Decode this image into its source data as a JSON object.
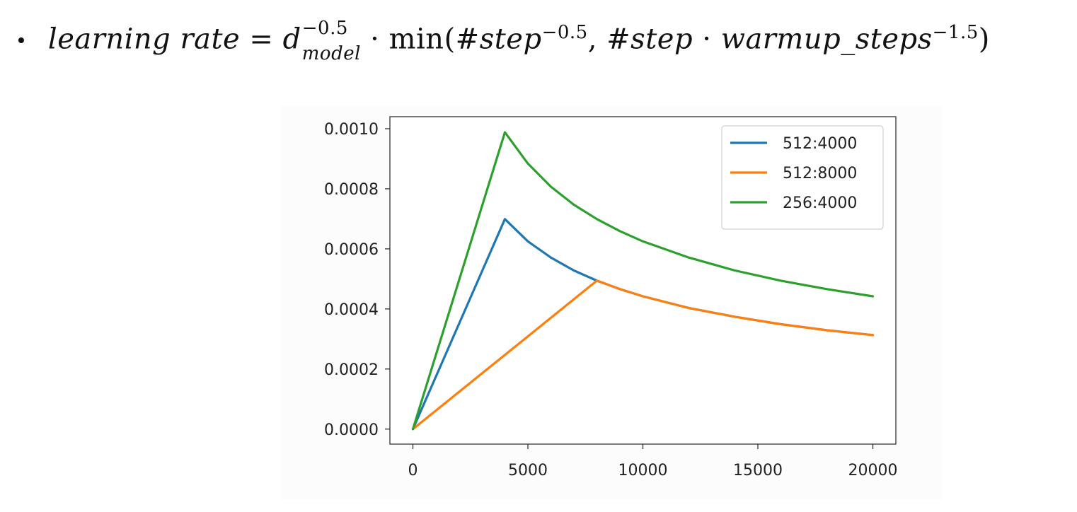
{
  "header": {
    "bullet": "•",
    "formula": "learning rate = d_model^{−0.5} · min(#step^{−0.5}, #step · warmup_steps^{−1.5})",
    "formula_parts": {
      "lhs": "learning rate",
      "eq": " = ",
      "d": "d",
      "d_sub": "model",
      "d_sup": "−0.5",
      "dot": " · ",
      "min_open": "min(",
      "step1": "#step",
      "step1_sup": "−0.5",
      "comma": ", ",
      "step2": "#step",
      "dot2": " · ",
      "warmup": "warmup_steps",
      "warmup_sup": "−1.5",
      "close": ")"
    }
  },
  "chart_data": {
    "type": "line",
    "title": "",
    "xlabel": "",
    "ylabel": "",
    "xlim": [
      -1000,
      21000
    ],
    "ylim": [
      -5e-05,
      0.00104
    ],
    "xticks": [
      0,
      5000,
      10000,
      15000,
      20000
    ],
    "xtick_labels": [
      "0",
      "5000",
      "10000",
      "15000",
      "20000"
    ],
    "yticks": [
      0.0,
      0.0002,
      0.0004,
      0.0006,
      0.0008,
      0.001
    ],
    "ytick_labels": [
      "0.0000",
      "0.0002",
      "0.0004",
      "0.0006",
      "0.0008",
      "0.0010"
    ],
    "grid": false,
    "legend_position": "top-right",
    "series": [
      {
        "name": "512:4000",
        "color": "#1f77b4",
        "d_model": 512,
        "warmup": 4000,
        "x": [
          0,
          4000,
          5000,
          6000,
          7000,
          8000,
          9000,
          10000,
          12000,
          14000,
          16000,
          18000,
          20000
        ],
        "y": [
          0.0,
          0.000699,
          0.000625,
          0.000571,
          0.000528,
          0.000494,
          0.000466,
          0.000442,
          0.000403,
          0.000374,
          0.000349,
          0.000329,
          0.000313
        ]
      },
      {
        "name": "512:8000",
        "color": "#ff7f0e",
        "d_model": 512,
        "warmup": 8000,
        "x": [
          0,
          8000,
          9000,
          10000,
          12000,
          14000,
          16000,
          18000,
          20000
        ],
        "y": [
          0.0,
          0.000494,
          0.000466,
          0.000442,
          0.000403,
          0.000374,
          0.000349,
          0.000329,
          0.000313
        ]
      },
      {
        "name": "256:4000",
        "color": "#2ca02c",
        "d_model": 256,
        "warmup": 4000,
        "x": [
          0,
          4000,
          5000,
          6000,
          7000,
          8000,
          9000,
          10000,
          12000,
          14000,
          16000,
          18000,
          20000
        ],
        "y": [
          0.0,
          0.000988,
          0.000884,
          0.000807,
          0.000747,
          0.000699,
          0.000659,
          0.000625,
          0.000571,
          0.000528,
          0.000494,
          0.000466,
          0.000442
        ]
      }
    ]
  }
}
